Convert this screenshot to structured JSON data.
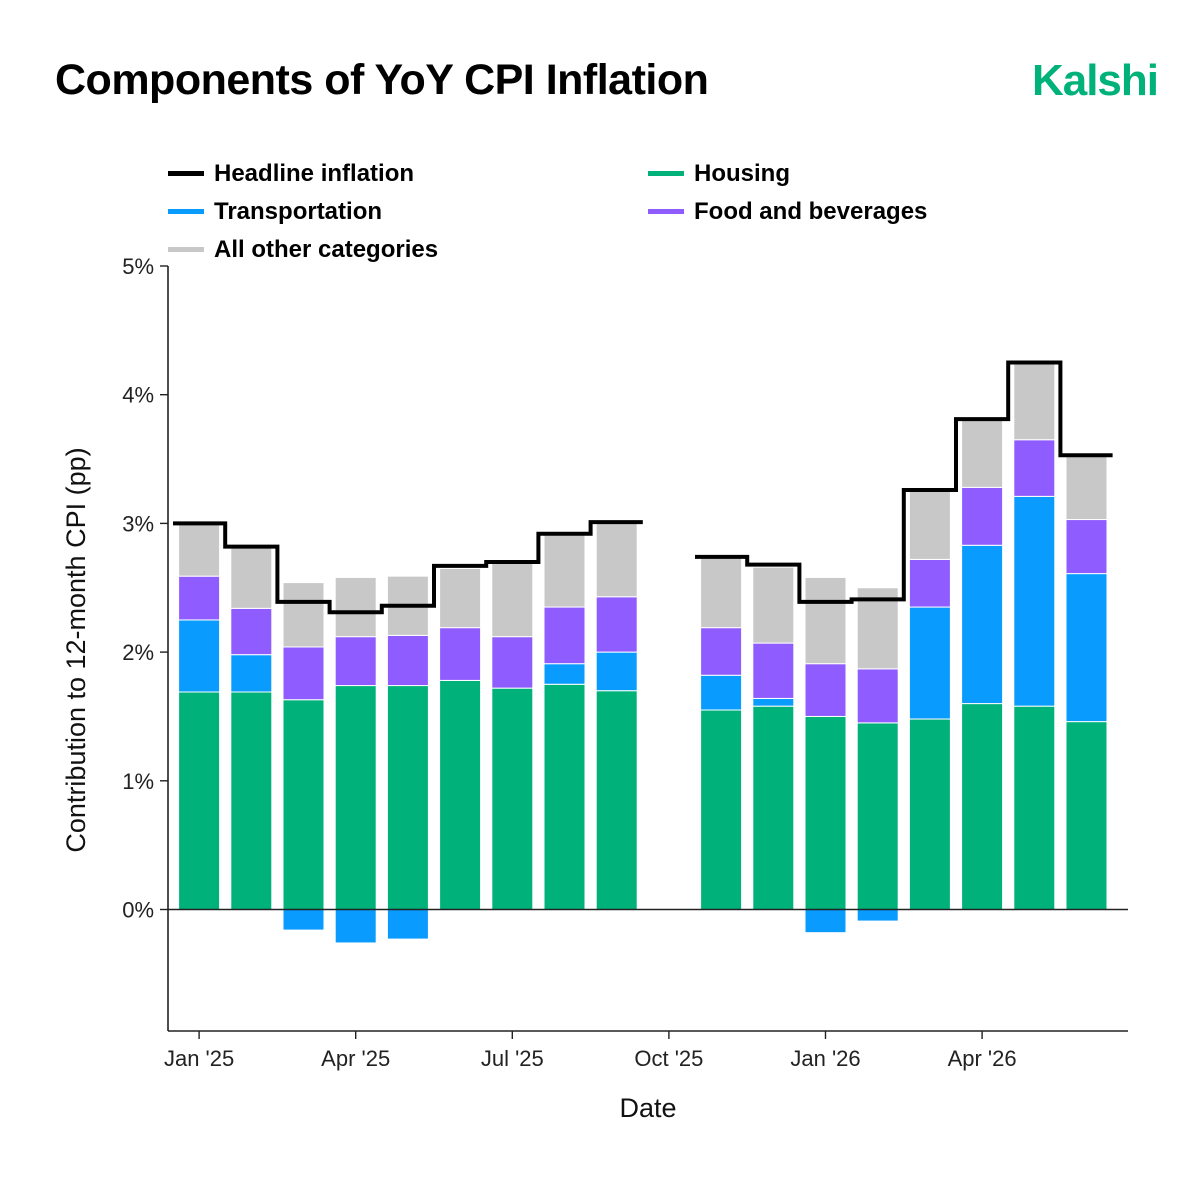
{
  "page": {
    "title": "Components of YoY CPI Inflation",
    "brand": "Kalshi"
  },
  "colors": {
    "housing": "#00b27a",
    "transportation": "#0a9bff",
    "food": "#8f5cff",
    "other": "#c8c8c8",
    "headline": "#000000",
    "brand": "#00b27a"
  },
  "chart_data": {
    "type": "bar",
    "stacked": true,
    "xlabel": "Date",
    "ylabel": "Contribution to 12-month CPI (pp)",
    "ylim": [
      -0.95,
      5
    ],
    "yticks": [
      0,
      1,
      2,
      3,
      4,
      5
    ],
    "ytick_labels": [
      "0%",
      "1%",
      "2%",
      "3%",
      "4%",
      "5%"
    ],
    "xticks": [
      "2025-01",
      "2025-04",
      "2025-07",
      "2025-10",
      "2026-01",
      "2026-04"
    ],
    "xtick_labels": [
      "Jan '25",
      "Apr '25",
      "Jul '25",
      "Oct '25",
      "Jan '26",
      "Apr '26"
    ],
    "grid": false,
    "legend_position": "top",
    "categories": [
      "2025-01",
      "2025-02",
      "2025-03",
      "2025-04",
      "2025-05",
      "2025-06",
      "2025-07",
      "2025-08",
      "2025-09",
      "2025-10",
      "2025-11",
      "2025-12",
      "2026-01",
      "2026-02",
      "2026-03",
      "2026-04",
      "2026-05",
      "2026-06"
    ],
    "series": [
      {
        "name": "Housing",
        "key": "housing",
        "values": [
          1.69,
          1.69,
          1.63,
          1.74,
          1.74,
          1.78,
          1.72,
          1.75,
          1.7,
          null,
          1.55,
          1.58,
          1.5,
          1.45,
          1.48,
          1.6,
          1.58,
          1.46
        ]
      },
      {
        "name": "Transportation",
        "key": "transportation",
        "values": [
          0.56,
          0.29,
          -0.16,
          -0.26,
          -0.23,
          0.0,
          0.0,
          0.16,
          0.3,
          null,
          0.27,
          0.06,
          -0.18,
          -0.09,
          0.87,
          1.23,
          1.63,
          1.15
        ]
      },
      {
        "name": "Food and beverages",
        "key": "food",
        "values": [
          0.34,
          0.36,
          0.41,
          0.38,
          0.39,
          0.41,
          0.4,
          0.44,
          0.43,
          null,
          0.37,
          0.43,
          0.41,
          0.42,
          0.37,
          0.45,
          0.44,
          0.42
        ]
      },
      {
        "name": "All other categories",
        "key": "other",
        "values": [
          0.41,
          0.48,
          0.5,
          0.46,
          0.46,
          0.46,
          0.58,
          0.56,
          0.58,
          null,
          0.54,
          0.59,
          0.67,
          0.63,
          0.53,
          0.52,
          0.59,
          0.5
        ]
      }
    ],
    "headline": {
      "name": "Headline inflation",
      "values": [
        3.0,
        2.82,
        2.39,
        2.31,
        2.36,
        2.67,
        2.7,
        2.92,
        3.01,
        null,
        2.74,
        2.68,
        2.39,
        2.41,
        3.26,
        3.81,
        4.25,
        3.53
      ]
    }
  }
}
